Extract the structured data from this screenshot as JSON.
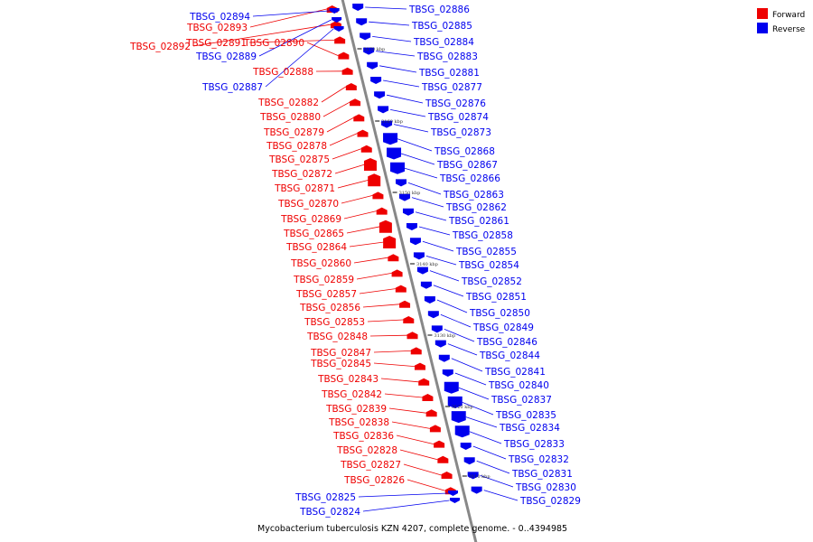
{
  "colors": {
    "forward": "#ee0000",
    "reverse": "#0000ee",
    "axis": "#888888",
    "tick": "#000000"
  },
  "legend": {
    "forward_label": "Forward",
    "reverse_label": "Reverse"
  },
  "caption": "Mycobacterium tuberculosis KZN 4207, complete genome. - 0..4394985",
  "ticks": [
    "3170 kbp",
    "3160 kbp",
    "3150 kbp",
    "3140 kbp",
    "3130 kbp",
    "3120 kbp",
    "3110 kbp"
  ],
  "forward_genes": [
    "TBSG_02893",
    "TBSG_02892",
    "TBSG_02891",
    "TBSG_02890",
    "TBSG_02888",
    "TBSG_02882",
    "TBSG_02880",
    "TBSG_02879",
    "TBSG_02878",
    "TBSG_02875",
    "TBSG_02872",
    "TBSG_02871",
    "TBSG_02870",
    "TBSG_02869",
    "TBSG_02865",
    "TBSG_02864",
    "TBSG_02860",
    "TBSG_02859",
    "TBSG_02857",
    "TBSG_02856",
    "TBSG_02853",
    "TBSG_02848",
    "TBSG_02847",
    "TBSG_02845",
    "TBSG_02843",
    "TBSG_02842",
    "TBSG_02839",
    "TBSG_02838",
    "TBSG_02836",
    "TBSG_02828",
    "TBSG_02827",
    "TBSG_02826"
  ],
  "reverse_genes_left": [
    "TBSG_02894",
    "TBSG_02889",
    "TBSG_02887",
    "TBSG_02825",
    "TBSG_02824"
  ],
  "reverse_genes_right": [
    "TBSG_02886",
    "TBSG_02885",
    "TBSG_02884",
    "TBSG_02883",
    "TBSG_02881",
    "TBSG_02877",
    "TBSG_02876",
    "TBSG_02874",
    "TBSG_02873",
    "TBSG_02868",
    "TBSG_02867",
    "TBSG_02866",
    "TBSG_02863",
    "TBSG_02862",
    "TBSG_02861",
    "TBSG_02858",
    "TBSG_02855",
    "TBSG_02854",
    "TBSG_02852",
    "TBSG_02851",
    "TBSG_02850",
    "TBSG_02849",
    "TBSG_02846",
    "TBSG_02844",
    "TBSG_02841",
    "TBSG_02840",
    "TBSG_02837",
    "TBSG_02835",
    "TBSG_02834",
    "TBSG_02833",
    "TBSG_02832",
    "TBSG_02831",
    "TBSG_02830",
    "TBSG_02829"
  ]
}
